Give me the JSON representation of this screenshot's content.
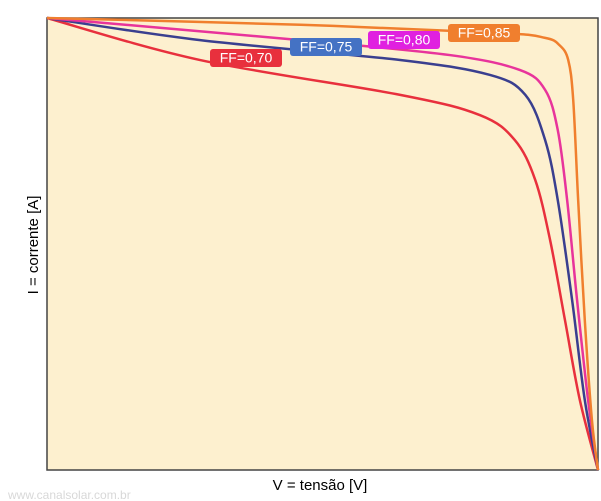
{
  "chart_data": {
    "type": "line",
    "xlabel": "V = tensão [V]",
    "ylabel": "I = corrente [A]",
    "watermark": "www.canalsolar.com.br",
    "xlim": [
      0,
      100
    ],
    "ylim": [
      0,
      100
    ],
    "series": [
      {
        "name": "FF=0,70",
        "color": "#e8303d",
        "x": [
          0,
          27.8,
          64.1,
          78.6,
          84.9,
          88.6,
          91.3,
          94,
          96.7,
          100
        ],
        "values": [
          100,
          90.7,
          83,
          78.5,
          73,
          64.2,
          50.9,
          33.2,
          15.5,
          0
        ]
      },
      {
        "name": "FF=0,75",
        "color": "#3a3f8f",
        "label_color": "#4472c4",
        "x": [
          0,
          27.8,
          64.1,
          80.4,
          86.8,
          90.4,
          92.7,
          95.3,
          97.6,
          100
        ],
        "values": [
          100,
          95.1,
          90.7,
          87.4,
          83,
          73,
          59.7,
          37.6,
          15.5,
          0
        ]
      },
      {
        "name": "FF=0,80",
        "color": "#e8349b",
        "label_color": "#e020e0",
        "x": [
          0,
          46,
          73.1,
          85.8,
          90.4,
          92.7,
          94.4,
          96.2,
          98.2,
          100
        ],
        "values": [
          100,
          95.1,
          91.8,
          88.5,
          84.1,
          75.2,
          59.7,
          37.6,
          15.5,
          0
        ]
      },
      {
        "name": "FF=0,85",
        "color": "#f07f2e",
        "x": [
          0,
          46,
          82,
          90.4,
          93,
          94.6,
          95.5,
          96.4,
          97.6,
          98.9,
          100
        ],
        "values": [
          100,
          98.5,
          96.7,
          95.6,
          94,
          90.7,
          81.9,
          59.7,
          33.2,
          11,
          0
        ]
      }
    ]
  }
}
